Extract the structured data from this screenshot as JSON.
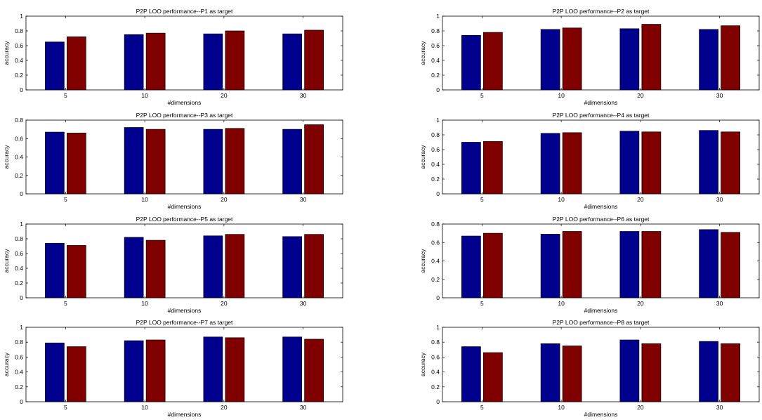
{
  "colors": {
    "series_a": "#00008f",
    "series_b": "#800000"
  },
  "chart_data": [
    {
      "type": "bar",
      "title": "P2P LOO performance--P1 as target",
      "xlabel": "#dimensions",
      "ylabel": "accuracy",
      "categories": [
        "5",
        "10",
        "20",
        "30"
      ],
      "ylim": [
        0,
        1
      ],
      "yticks": [
        "0",
        "0.2",
        "0.4",
        "0.6",
        "0.8",
        "1"
      ],
      "series": [
        {
          "values": [
            0.65,
            0.75,
            0.76,
            0.76
          ]
        },
        {
          "values": [
            0.72,
            0.77,
            0.8,
            0.81
          ]
        }
      ]
    },
    {
      "type": "bar",
      "title": "P2P LOO performance--P2 as target",
      "xlabel": "#dimensions",
      "ylabel": "accuracy",
      "categories": [
        "5",
        "10",
        "20",
        "30"
      ],
      "ylim": [
        0,
        1
      ],
      "yticks": [
        "0",
        "0.2",
        "0.4",
        "0.6",
        "0.8",
        "1"
      ],
      "series": [
        {
          "values": [
            0.74,
            0.82,
            0.83,
            0.82
          ]
        },
        {
          "values": [
            0.78,
            0.84,
            0.89,
            0.87
          ]
        }
      ]
    },
    {
      "type": "bar",
      "title": "P2P LOO performance--P3 as target",
      "xlabel": "#dimensions",
      "ylabel": "accuracy",
      "categories": [
        "5",
        "10",
        "20",
        "30"
      ],
      "ylim": [
        0,
        0.8
      ],
      "yticks": [
        "0",
        "0.2",
        "0.4",
        "0.6",
        "0.8"
      ],
      "series": [
        {
          "values": [
            0.67,
            0.72,
            0.7,
            0.7
          ]
        },
        {
          "values": [
            0.66,
            0.7,
            0.71,
            0.75
          ]
        }
      ]
    },
    {
      "type": "bar",
      "title": "P2P LOO performance--P4 as target",
      "xlabel": "#dimensions",
      "ylabel": "accuracy",
      "categories": [
        "5",
        "10",
        "20",
        "30"
      ],
      "ylim": [
        0,
        1
      ],
      "yticks": [
        "0",
        "0.2",
        "0.4",
        "0.6",
        "0.8",
        "1"
      ],
      "series": [
        {
          "values": [
            0.7,
            0.82,
            0.85,
            0.86
          ]
        },
        {
          "values": [
            0.71,
            0.83,
            0.84,
            0.84
          ]
        }
      ]
    },
    {
      "type": "bar",
      "title": "P2P LOO performance--P5 as target",
      "xlabel": "#dimensions",
      "ylabel": "accuracy",
      "categories": [
        "5",
        "10",
        "20",
        "30"
      ],
      "ylim": [
        0,
        1
      ],
      "yticks": [
        "0",
        "0.2",
        "0.4",
        "0.6",
        "0.8",
        "1"
      ],
      "series": [
        {
          "values": [
            0.74,
            0.82,
            0.84,
            0.83
          ]
        },
        {
          "values": [
            0.71,
            0.78,
            0.86,
            0.86
          ]
        }
      ]
    },
    {
      "type": "bar",
      "title": "P2P LOO performance--P6 as target",
      "xlabel": "#dimensions",
      "ylabel": "accuracy",
      "categories": [
        "5",
        "10",
        "20",
        "30"
      ],
      "ylim": [
        0,
        0.8
      ],
      "yticks": [
        "0",
        "0.2",
        "0.4",
        "0.6",
        "0.8"
      ],
      "series": [
        {
          "values": [
            0.67,
            0.69,
            0.72,
            0.74
          ]
        },
        {
          "values": [
            0.7,
            0.72,
            0.72,
            0.71
          ]
        }
      ]
    },
    {
      "type": "bar",
      "title": "P2P LOO performance--P7 as target",
      "xlabel": "#dimensions",
      "ylabel": "accuracy",
      "categories": [
        "5",
        "10",
        "20",
        "30"
      ],
      "ylim": [
        0,
        1
      ],
      "yticks": [
        "0",
        "0.2",
        "0.4",
        "0.6",
        "0.8",
        "1"
      ],
      "series": [
        {
          "values": [
            0.79,
            0.82,
            0.87,
            0.87
          ]
        },
        {
          "values": [
            0.74,
            0.83,
            0.86,
            0.84
          ]
        }
      ]
    },
    {
      "type": "bar",
      "title": "P2P LOO performance--P8 as target",
      "xlabel": "#dimensions",
      "ylabel": "accuracy",
      "categories": [
        "5",
        "10",
        "20",
        "30"
      ],
      "ylim": [
        0,
        1
      ],
      "yticks": [
        "0",
        "0.2",
        "0.4",
        "0.6",
        "0.8",
        "1"
      ],
      "series": [
        {
          "values": [
            0.74,
            0.78,
            0.83,
            0.81
          ]
        },
        {
          "values": [
            0.66,
            0.75,
            0.78,
            0.78
          ]
        }
      ]
    }
  ]
}
